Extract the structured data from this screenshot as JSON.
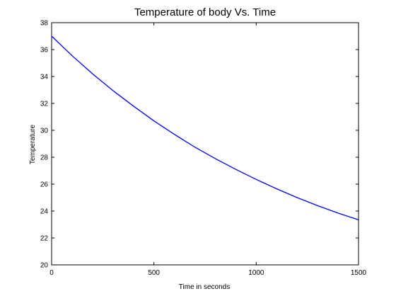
{
  "chart_data": {
    "type": "line",
    "title": "Temperature of body Vs. Time",
    "xlabel": "Time in seconds",
    "ylabel": "Temperature",
    "xlim": [
      0,
      1500
    ],
    "ylim": [
      20,
      38
    ],
    "xticks": [
      0,
      500,
      1000,
      1500
    ],
    "yticks": [
      20,
      22,
      24,
      26,
      28,
      30,
      32,
      34,
      36,
      38
    ],
    "xtick_labels": [
      "0",
      "500",
      "1000",
      "1500"
    ],
    "ytick_labels": [
      "20",
      "22",
      "24",
      "26",
      "28",
      "30",
      "32",
      "34",
      "36",
      "38"
    ],
    "grid": false,
    "series": [
      {
        "color": "#0000ff",
        "x": [
          0,
          100,
          200,
          300,
          400,
          500,
          600,
          700,
          800,
          900,
          1000,
          1100,
          1200,
          1300,
          1400,
          1500
        ],
        "y": [
          37.0,
          35.55,
          34.2,
          32.95,
          31.8,
          30.7,
          29.7,
          28.75,
          27.9,
          27.1,
          26.35,
          25.65,
          25.0,
          24.4,
          23.85,
          23.35
        ]
      }
    ]
  }
}
